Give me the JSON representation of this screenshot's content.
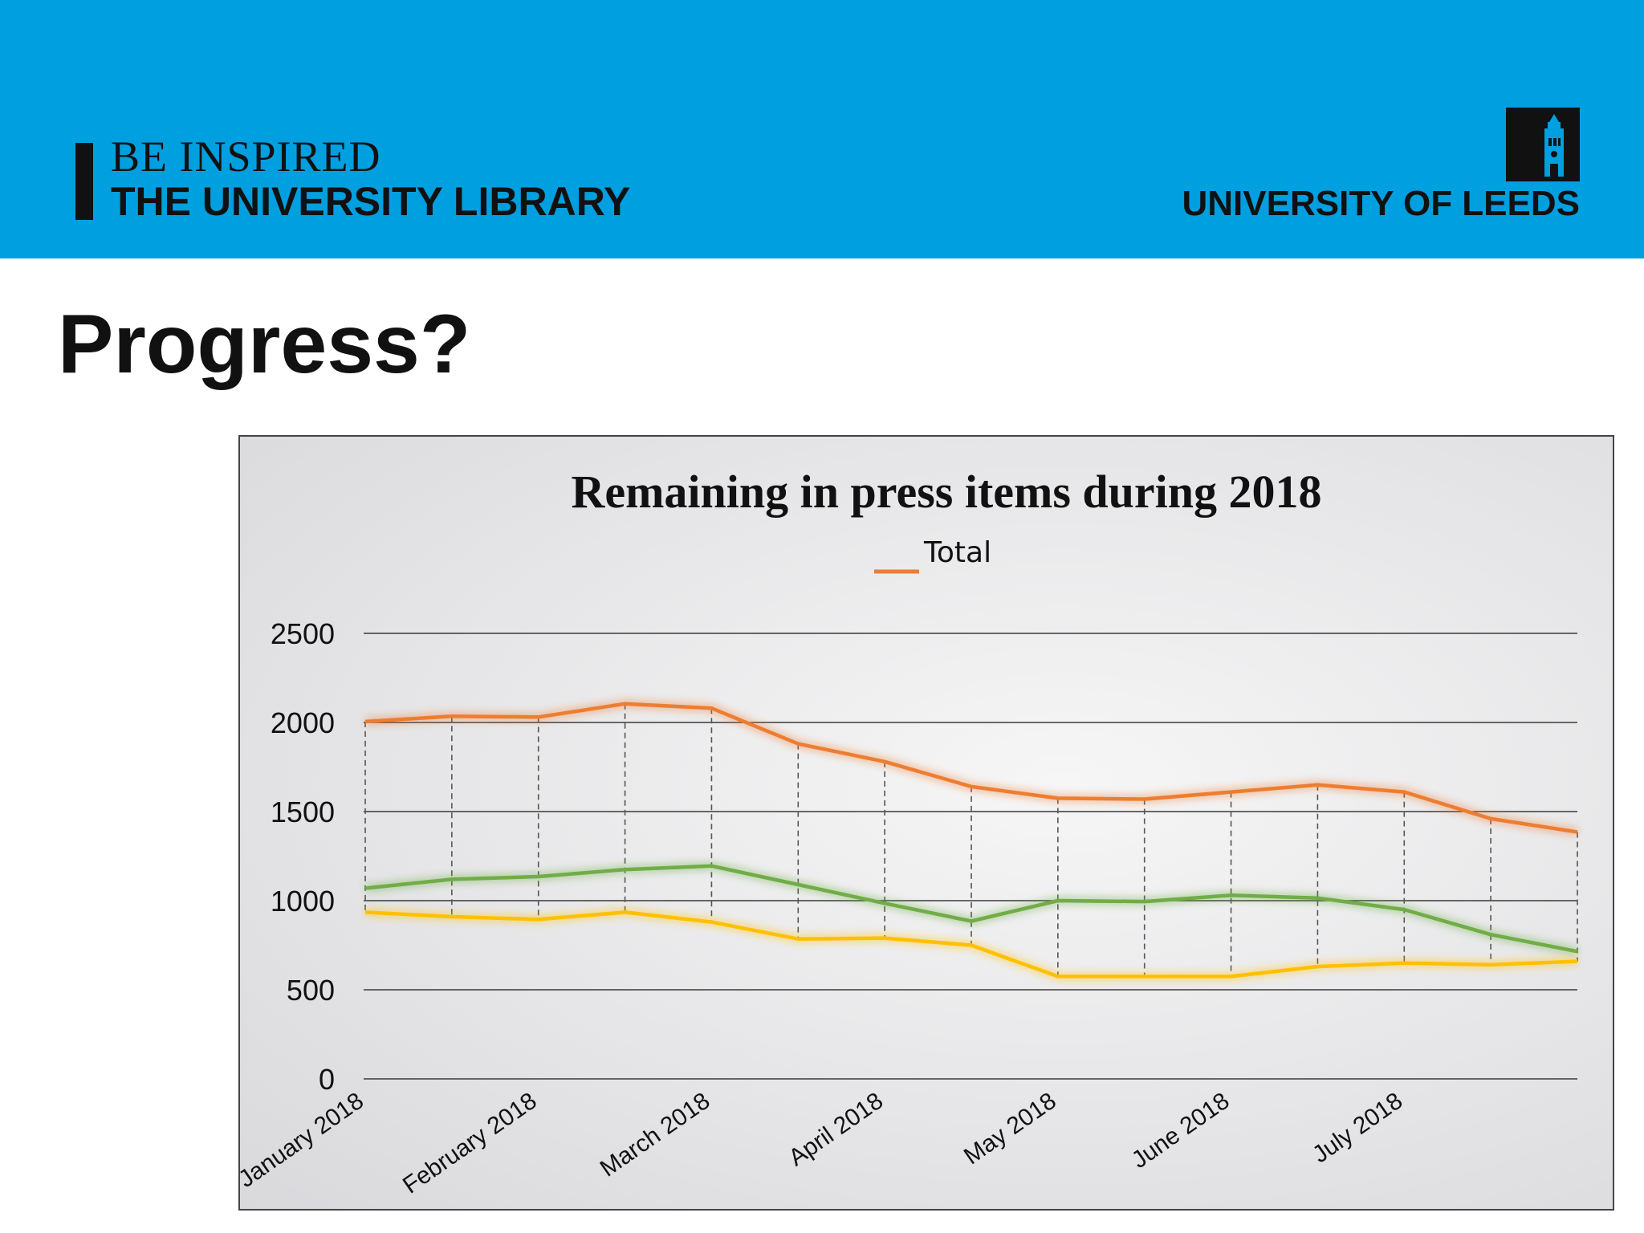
{
  "header": {
    "tagline": "BE INSPIRED",
    "library_name": "THE UNIVERSITY LIBRARY",
    "university": "UNIVERSITY OF LEEDS",
    "logo_icon": "university-tower-icon",
    "background_color": "#009fdf"
  },
  "slide": {
    "title": "Progress?"
  },
  "chart_data": {
    "type": "line",
    "title": "Remaining in press items during 2018",
    "xlabel": "",
    "ylabel": "",
    "ylim": [
      0,
      2500
    ],
    "y_ticks": [
      "0",
      "500",
      "1000",
      "1500",
      "2000",
      "2500"
    ],
    "grid": true,
    "legend_placement": "top-center",
    "legend_entries": [
      "Total"
    ],
    "x": [
      1,
      2,
      3,
      4,
      5,
      6,
      7,
      8,
      9,
      10,
      11,
      12,
      13,
      14,
      15
    ],
    "x_tick_labels": [
      {
        "x": 1,
        "label": "January 2018"
      },
      {
        "x": 3,
        "label": "February 2018"
      },
      {
        "x": 5,
        "label": "March 2018"
      },
      {
        "x": 7,
        "label": "April 2018"
      },
      {
        "x": 9,
        "label": "May 2018"
      },
      {
        "x": 11,
        "label": "June 2018"
      },
      {
        "x": 13,
        "label": "July 2018"
      }
    ],
    "series": [
      {
        "name": "Total",
        "color": "#ed7d31",
        "values": [
          2005,
          2035,
          2030,
          2105,
          2080,
          1880,
          1780,
          1640,
          1575,
          1570,
          1610,
          1650,
          1610,
          1460,
          1385
        ]
      },
      {
        "color": "#70ad47",
        "values": [
          1070,
          1120,
          1135,
          1175,
          1195,
          1090,
          985,
          885,
          1000,
          995,
          1030,
          1015,
          950,
          810,
          715
        ]
      },
      {
        "color": "#ffc000",
        "values": [
          935,
          910,
          895,
          935,
          880,
          785,
          790,
          750,
          575,
          575,
          575,
          630,
          650,
          640,
          660
        ]
      }
    ]
  }
}
